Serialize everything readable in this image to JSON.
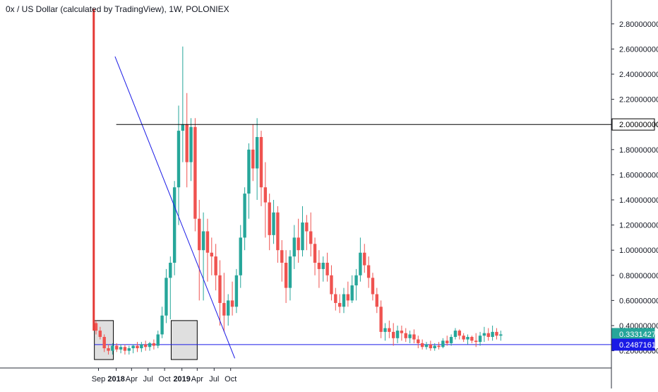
{
  "chart_data": {
    "type": "candlestick",
    "title": "0x / US Dollar (calculated by TradingView), 1W, POLONIEX",
    "colors": {
      "up": "#26a69a",
      "down": "#ef5350",
      "trend_line": "#1a1ae6",
      "level_line": "#000000",
      "support_line": "#1a1ae6",
      "box_fill": "#d9d9d9",
      "vertical_marker": "#e53935",
      "last_price_label": "#26a69a",
      "support_label": "#1a1ae6"
    },
    "x_axis": {
      "ticks": [
        {
          "label": "Sep",
          "t": 0.6,
          "bold": false
        },
        {
          "label": "2018",
          "t": 4.9,
          "bold": true
        },
        {
          "label": "Apr",
          "t": 8.6,
          "bold": false
        },
        {
          "label": "Jul",
          "t": 12.6,
          "bold": false
        },
        {
          "label": "Oct",
          "t": 16.6,
          "bold": false
        },
        {
          "label": "2019",
          "t": 20.8,
          "bold": true
        },
        {
          "label": "Apr",
          "t": 24.5,
          "bold": false
        },
        {
          "label": "Jul",
          "t": 28.6,
          "bold": false
        },
        {
          "label": "Oct",
          "t": 32.6,
          "bold": false
        }
      ]
    },
    "y_axis": {
      "range": [
        0.0,
        2.92
      ],
      "ticks": [
        "0.20000000",
        "0.40000000",
        "0.60000000",
        "0.80000000",
        "1.00000000",
        "1.20000000",
        "1.40000000",
        "1.60000000",
        "1.80000000",
        "2.00000000",
        "2.20000000",
        "2.40000000",
        "2.60000000",
        "2.80000000"
      ]
    },
    "price_labels": {
      "last_price": "0.33314277",
      "last_price_value": 0.3331,
      "support": "0.24871613",
      "support_value": 0.2487,
      "level": "2.00000000",
      "level_value": 2.0
    },
    "candles": [
      [
        0.42,
        0.44,
        0.33,
        0.36
      ],
      [
        0.36,
        0.39,
        0.29,
        0.31
      ],
      [
        0.31,
        0.33,
        0.19,
        0.22
      ],
      [
        0.22,
        0.25,
        0.17,
        0.2
      ],
      [
        0.2,
        0.26,
        0.17,
        0.24
      ],
      [
        0.24,
        0.26,
        0.19,
        0.21
      ],
      [
        0.21,
        0.25,
        0.18,
        0.23
      ],
      [
        0.23,
        0.25,
        0.17,
        0.2
      ],
      [
        0.2,
        0.24,
        0.17,
        0.22
      ],
      [
        0.22,
        0.25,
        0.18,
        0.24
      ],
      [
        0.24,
        0.27,
        0.19,
        0.22
      ],
      [
        0.22,
        0.27,
        0.19,
        0.25
      ],
      [
        0.25,
        0.28,
        0.2,
        0.23
      ],
      [
        0.23,
        0.27,
        0.2,
        0.26
      ],
      [
        0.26,
        0.29,
        0.21,
        0.24
      ],
      [
        0.24,
        0.36,
        0.22,
        0.33
      ],
      [
        0.33,
        0.55,
        0.3,
        0.48
      ],
      [
        0.48,
        0.85,
        0.42,
        0.78
      ],
      [
        0.78,
        0.95,
        0.45,
        0.9
      ],
      [
        0.9,
        1.55,
        0.8,
        1.5
      ],
      [
        1.5,
        2.15,
        1.2,
        1.95
      ],
      [
        1.95,
        2.62,
        1.7,
        2.0
      ],
      [
        2.0,
        2.25,
        1.5,
        1.7
      ],
      [
        1.7,
        2.05,
        1.55,
        1.98
      ],
      [
        1.98,
        2.05,
        1.15,
        1.25
      ],
      [
        1.25,
        1.4,
        0.6,
        1.0
      ],
      [
        1.0,
        1.3,
        0.6,
        1.15
      ],
      [
        1.15,
        1.25,
        0.75,
        0.98
      ],
      [
        0.98,
        1.1,
        0.8,
        0.95
      ],
      [
        0.95,
        1.05,
        0.68,
        0.8
      ],
      [
        0.8,
        0.92,
        0.4,
        0.58
      ],
      [
        0.58,
        0.82,
        0.35,
        0.48
      ],
      [
        0.48,
        0.65,
        0.4,
        0.6
      ],
      [
        0.6,
        0.75,
        0.48,
        0.55
      ],
      [
        0.55,
        0.85,
        0.5,
        0.8
      ],
      [
        0.8,
        1.2,
        0.7,
        1.1
      ],
      [
        1.1,
        1.5,
        1.0,
        1.45
      ],
      [
        1.45,
        1.85,
        1.25,
        1.8
      ],
      [
        1.8,
        2.0,
        1.55,
        1.65
      ],
      [
        1.65,
        2.05,
        1.4,
        1.9
      ],
      [
        1.9,
        1.95,
        1.35,
        1.5
      ],
      [
        1.5,
        1.7,
        1.1,
        1.38
      ],
      [
        1.38,
        1.45,
        1.0,
        1.12
      ],
      [
        1.12,
        1.4,
        1.05,
        1.3
      ],
      [
        1.3,
        1.35,
        0.9,
        1.0
      ],
      [
        1.0,
        1.08,
        0.75,
        0.9
      ],
      [
        0.9,
        1.0,
        0.58,
        0.7
      ],
      [
        0.7,
        1.0,
        0.6,
        0.95
      ],
      [
        0.95,
        1.2,
        0.85,
        1.1
      ],
      [
        1.1,
        1.25,
        0.9,
        1.0
      ],
      [
        1.0,
        1.35,
        0.95,
        1.22
      ],
      [
        1.22,
        1.28,
        1.0,
        1.15
      ],
      [
        1.15,
        1.3,
        0.95,
        1.05
      ],
      [
        1.05,
        1.1,
        0.8,
        0.9
      ],
      [
        0.9,
        1.0,
        0.7,
        0.85
      ],
      [
        0.85,
        0.95,
        0.75,
        0.9
      ],
      [
        0.9,
        0.98,
        0.75,
        0.8
      ],
      [
        0.8,
        0.88,
        0.6,
        0.65
      ],
      [
        0.65,
        0.7,
        0.52,
        0.58
      ],
      [
        0.58,
        0.65,
        0.5,
        0.55
      ],
      [
        0.55,
        0.7,
        0.5,
        0.65
      ],
      [
        0.65,
        0.75,
        0.55,
        0.6
      ],
      [
        0.6,
        0.8,
        0.58,
        0.72
      ],
      [
        0.72,
        0.85,
        0.6,
        0.8
      ],
      [
        0.8,
        1.1,
        0.75,
        0.98
      ],
      [
        0.98,
        1.05,
        0.82,
        0.88
      ],
      [
        0.88,
        0.95,
        0.7,
        0.78
      ],
      [
        0.78,
        0.82,
        0.6,
        0.65
      ],
      [
        0.65,
        0.7,
        0.5,
        0.55
      ],
      [
        0.55,
        0.6,
        0.3,
        0.35
      ],
      [
        0.35,
        0.42,
        0.28,
        0.38
      ],
      [
        0.38,
        0.44,
        0.3,
        0.35
      ],
      [
        0.35,
        0.42,
        0.24,
        0.3
      ],
      [
        0.3,
        0.4,
        0.26,
        0.36
      ],
      [
        0.36,
        0.4,
        0.28,
        0.34
      ],
      [
        0.34,
        0.38,
        0.27,
        0.3
      ],
      [
        0.3,
        0.36,
        0.26,
        0.33
      ],
      [
        0.33,
        0.37,
        0.26,
        0.29
      ],
      [
        0.29,
        0.32,
        0.22,
        0.26
      ],
      [
        0.26,
        0.29,
        0.21,
        0.23
      ],
      [
        0.23,
        0.27,
        0.21,
        0.25
      ],
      [
        0.25,
        0.28,
        0.2,
        0.22
      ],
      [
        0.22,
        0.26,
        0.2,
        0.24
      ],
      [
        0.24,
        0.27,
        0.21,
        0.23
      ],
      [
        0.23,
        0.3,
        0.22,
        0.28
      ],
      [
        0.28,
        0.32,
        0.24,
        0.26
      ],
      [
        0.26,
        0.33,
        0.24,
        0.31
      ],
      [
        0.31,
        0.38,
        0.29,
        0.36
      ],
      [
        0.36,
        0.37,
        0.29,
        0.32
      ],
      [
        0.32,
        0.34,
        0.27,
        0.29
      ],
      [
        0.29,
        0.33,
        0.25,
        0.31
      ],
      [
        0.31,
        0.32,
        0.26,
        0.28
      ],
      [
        0.28,
        0.34,
        0.23,
        0.27
      ],
      [
        0.27,
        0.35,
        0.24,
        0.32
      ],
      [
        0.32,
        0.39,
        0.27,
        0.34
      ],
      [
        0.34,
        0.38,
        0.28,
        0.31
      ],
      [
        0.31,
        0.4,
        0.28,
        0.35
      ],
      [
        0.35,
        0.38,
        0.29,
        0.32
      ],
      [
        0.32,
        0.36,
        0.28,
        0.33
      ]
    ],
    "drawings": [
      {
        "kind": "trend_line",
        "from": [
          4.6,
          2.54
        ],
        "to": [
          33.6,
          0.14
        ]
      },
      {
        "kind": "level_line",
        "from": [
          4.9,
          2.0
        ],
        "to": [
          36.1,
          2.0
        ]
      },
      {
        "kind": "support_line",
        "from": [
          -0.4,
          0.2487
        ],
        "to": [
          36.1,
          0.2487
        ]
      },
      {
        "kind": "box",
        "from": [
          -0.4,
          0.44
        ],
        "to": [
          4.2,
          0.13
        ]
      },
      {
        "kind": "box",
        "from": [
          18.2,
          0.44
        ],
        "to": [
          24.5,
          0.13
        ]
      },
      {
        "kind": "vertical_marker",
        "at": -0.55,
        "from_value": 0.36,
        "to_value": 2.92
      }
    ]
  }
}
